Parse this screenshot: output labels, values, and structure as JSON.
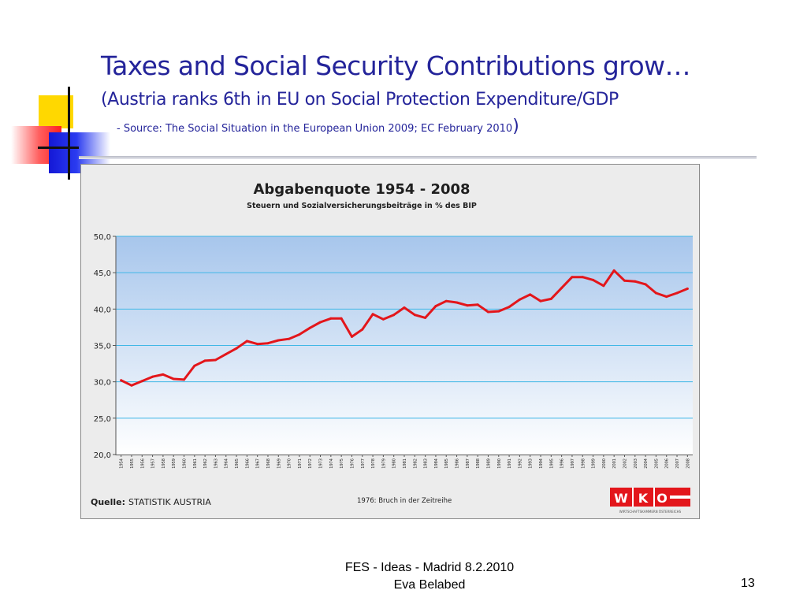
{
  "slide": {
    "title": "Taxes and Social Security Contributions grow…",
    "subtitle": "(Austria ranks 6th in EU on Social Protection Expenditure/GDP",
    "source": "- Source: The  Social Situation in the European Union 2009; EC February 2010",
    "source_close": ")",
    "footer_line1": "FES - Ideas - Madrid 8.2.2010",
    "footer_line2": "Eva Belabed",
    "page_number": "13"
  },
  "chart_data": {
    "type": "line",
    "title": "Abgabenquote 1954 - 2008",
    "subtitle": "Steuern und Sozialversicherungsbeiträge in % des BIP",
    "x": [
      1954,
      1955,
      1956,
      1957,
      1958,
      1959,
      1960,
      1961,
      1962,
      1963,
      1964,
      1965,
      1966,
      1967,
      1968,
      1969,
      1970,
      1971,
      1972,
      1973,
      1974,
      1975,
      1976,
      1977,
      1978,
      1979,
      1980,
      1981,
      1982,
      1983,
      1984,
      1985,
      1986,
      1987,
      1988,
      1989,
      1990,
      1991,
      1992,
      1993,
      1994,
      1995,
      1996,
      1997,
      1998,
      1999,
      2000,
      2001,
      2002,
      2003,
      2004,
      2005,
      2006,
      2007,
      2008
    ],
    "series": [
      {
        "values": [
          30.2,
          29.5,
          30.1,
          30.7,
          31.0,
          30.4,
          30.3,
          32.2,
          32.9,
          33.0,
          33.8,
          34.6,
          35.6,
          35.2,
          35.3,
          35.7,
          35.9,
          36.5,
          37.4,
          38.2,
          38.7,
          38.7,
          36.2,
          37.2,
          39.3,
          38.6,
          39.2,
          40.2,
          39.2,
          38.8,
          40.4,
          41.1,
          40.9,
          40.5,
          40.6,
          39.6,
          39.7,
          40.3,
          41.3,
          42.0,
          41.1,
          41.4,
          42.9,
          44.4,
          44.4,
          44.0,
          43.2,
          45.3,
          43.9,
          43.8,
          43.4,
          42.2,
          41.7,
          42.2,
          42.8
        ],
        "color": "#e3161b"
      }
    ],
    "y_ticks": [
      "50,0",
      "45,0",
      "40,0",
      "35,0",
      "30,0",
      "25,0",
      "20,0"
    ],
    "ylim": [
      20,
      50
    ],
    "grid": true,
    "source_label": "Quelle:",
    "source_value": "STATISTIK AUSTRIA",
    "note": "1976: Bruch in der Zeitreihe",
    "logo": {
      "letters": [
        "W",
        "K",
        "O"
      ],
      "tagline": "WIRTSCHAFTSKAMMERN ÖSTERREICHS",
      "color": "#e3161b"
    }
  }
}
